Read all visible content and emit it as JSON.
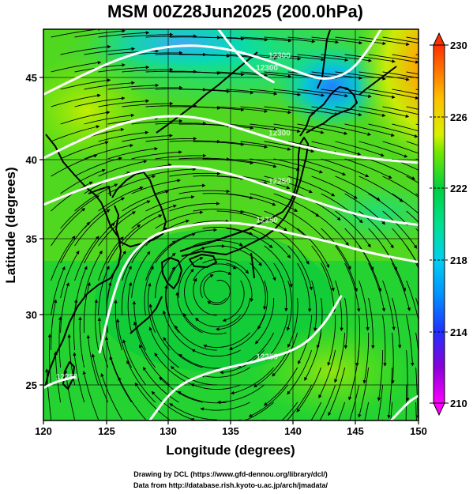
{
  "chart_data": {
    "type": "heatmap",
    "title": "MSM 00Z28Jun2025 (200.0hPa)",
    "xlabel": "Longitude (degrees)",
    "ylabel": "Latitude  (degrees)",
    "xlim": [
      120,
      150
    ],
    "ylim": [
      22.4,
      47.6
    ],
    "x_ticks": [
      "120",
      "125",
      "130",
      "135",
      "140",
      "145",
      "150"
    ],
    "y_ticks": [
      "25",
      "30",
      "35",
      "40",
      "45"
    ],
    "colorbar": {
      "min": 210,
      "max": 230,
      "ticks": [
        "210",
        "214",
        "218",
        "222",
        "226",
        "230"
      ],
      "colors": [
        "#ff00ff",
        "#b000d0",
        "#2020ff",
        "#0080ff",
        "#00c8ff",
        "#00e0a0",
        "#00d050",
        "#40e000",
        "#a0f000",
        "#e0f000",
        "#ffc000",
        "#ff7000",
        "#ff3000"
      ]
    },
    "contours": [
      {
        "label": "12300",
        "points": [
          [
            120,
            43.4
          ],
          [
            123,
            44.6
          ],
          [
            126,
            45.7
          ],
          [
            129,
            46.4
          ],
          [
            132,
            46.6
          ],
          [
            135,
            46.3
          ],
          [
            138,
            45.6
          ],
          [
            140.5,
            44.8
          ],
          [
            142.5,
            44.3
          ],
          [
            144.5,
            44.8
          ],
          [
            146,
            46.3
          ],
          [
            147,
            47.6
          ]
        ]
      },
      {
        "label": "12300",
        "points": [
          [
            134,
            47.6
          ],
          [
            135.5,
            46.0
          ],
          [
            137,
            44.8
          ],
          [
            138.4,
            44.2
          ]
        ]
      },
      {
        "label": "12300",
        "points": [
          [
            120,
            39.3
          ],
          [
            123,
            40.5
          ],
          [
            126,
            41.5
          ],
          [
            129,
            42.0
          ],
          [
            132,
            42.0
          ],
          [
            135,
            41.4
          ],
          [
            138,
            40.6
          ],
          [
            141,
            40.0
          ],
          [
            144,
            39.5
          ],
          [
            147,
            39.2
          ],
          [
            150,
            39.0
          ]
        ]
      },
      {
        "label": "12250",
        "points": [
          [
            120,
            36.3
          ],
          [
            123,
            37.3
          ],
          [
            126,
            38.1
          ],
          [
            129,
            38.7
          ],
          [
            132,
            38.8
          ],
          [
            135,
            38.3
          ],
          [
            138,
            37.5
          ],
          [
            141,
            36.7
          ],
          [
            144,
            35.9
          ],
          [
            147,
            35.3
          ],
          [
            150,
            35.0
          ]
        ]
      },
      {
        "label": "12250",
        "points": [
          [
            124.5,
            26.8
          ],
          [
            125.4,
            30.0
          ],
          [
            126.5,
            32.6
          ],
          [
            128.5,
            34.3
          ],
          [
            131,
            34.9
          ],
          [
            134,
            35.2
          ],
          [
            137,
            35.0
          ],
          [
            140,
            34.4
          ],
          [
            143,
            33.9
          ],
          [
            146,
            33.2
          ],
          [
            150,
            32.6
          ]
        ]
      },
      {
        "label": "12250",
        "points": [
          [
            128.5,
            22.4
          ],
          [
            130.5,
            24.6
          ],
          [
            133.5,
            25.6
          ],
          [
            137,
            26.2
          ],
          [
            140.5,
            27.0
          ],
          [
            142.5,
            28.6
          ],
          [
            143.8,
            30.4
          ]
        ]
      },
      {
        "label": "12250",
        "points": [
          [
            120,
            24.5
          ],
          [
            121,
            24.9
          ],
          [
            122.5,
            25.2
          ]
        ]
      },
      {
        "label": "",
        "points": [
          [
            147.8,
            22.4
          ],
          [
            149.2,
            23.6
          ],
          [
            150,
            24.0
          ]
        ]
      }
    ],
    "streamline_field": {
      "components": [
        "westerly jet",
        "anticyclone"
      ],
      "anticyclone_center": [
        134,
        31
      ]
    }
  },
  "credits": {
    "line1": "Drawing by DCL (https://www.gfd-dennou.org/library/dcl/)",
    "line2": "Data from http://database.rish.kyoto-u.ac.jp/arch/jmadata/"
  }
}
